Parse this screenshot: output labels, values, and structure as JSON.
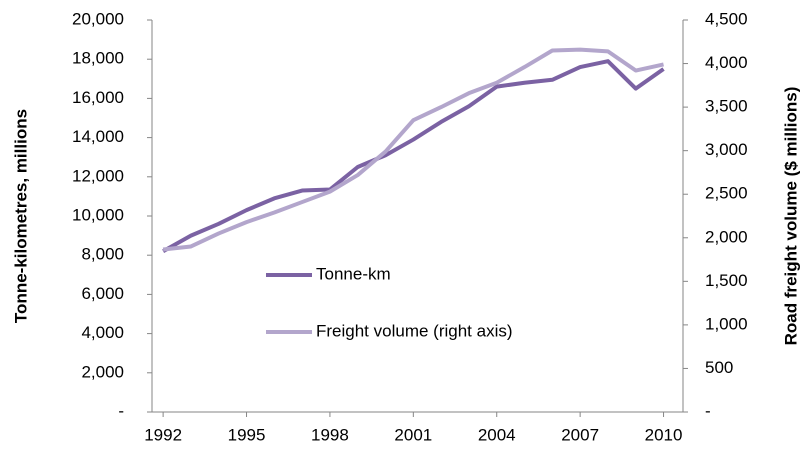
{
  "chart_data": {
    "type": "line",
    "x": [
      1992,
      1993,
      1994,
      1995,
      1996,
      1997,
      1998,
      1999,
      2000,
      2001,
      2002,
      2003,
      2004,
      2005,
      2006,
      2007,
      2008,
      2009,
      2010
    ],
    "xlim": [
      1991.6,
      2010.7
    ],
    "xticks": [
      1992,
      1995,
      1998,
      2001,
      2004,
      2007,
      2010
    ],
    "y_label": "Tonne-kilometres, millions",
    "y2_label": "Road freight volume ($ millions)",
    "ylim": [
      0,
      20000
    ],
    "yticks": [
      {
        "value": 0,
        "label": "-"
      },
      {
        "value": 2000,
        "label": "2,000"
      },
      {
        "value": 4000,
        "label": "4,000"
      },
      {
        "value": 6000,
        "label": "6,000"
      },
      {
        "value": 8000,
        "label": "8,000"
      },
      {
        "value": 10000,
        "label": "10,000"
      },
      {
        "value": 12000,
        "label": "12,000"
      },
      {
        "value": 14000,
        "label": "14,000"
      },
      {
        "value": 16000,
        "label": "16,000"
      },
      {
        "value": 18000,
        "label": "18,000"
      },
      {
        "value": 20000,
        "label": "20,000"
      }
    ],
    "y2lim": [
      0,
      4500
    ],
    "y2ticks": [
      {
        "value": 0,
        "label": "-"
      },
      500,
      {
        "value": 1000,
        "label": "1,000"
      },
      {
        "value": 1500,
        "label": "1,500"
      },
      {
        "value": 2000,
        "label": "2,000"
      },
      {
        "value": 2500,
        "label": "2,500"
      },
      {
        "value": 3000,
        "label": "3,000"
      },
      {
        "value": 3500,
        "label": "3,500"
      },
      {
        "value": 4000,
        "label": "4,000"
      },
      {
        "value": 4500,
        "label": "4,500"
      }
    ],
    "series": [
      {
        "name": "Tonne-km",
        "color": "#7b62a3",
        "values": [
          8200,
          9000,
          9600,
          10300,
          10900,
          11300,
          11350,
          12500,
          13100,
          13900,
          14800,
          15600,
          16600,
          16800,
          16950,
          17600,
          17900,
          16500,
          17500
        ]
      },
      {
        "name": "Freight volume (right axis)",
        "color": "#b3a6cc",
        "axis": "y2",
        "values": [
          1865,
          1900,
          2050,
          2180,
          2290,
          2410,
          2530,
          2720,
          2990,
          3350,
          3500,
          3660,
          3780,
          3960,
          4150,
          4160,
          4140,
          3920,
          3990
        ]
      }
    ]
  }
}
